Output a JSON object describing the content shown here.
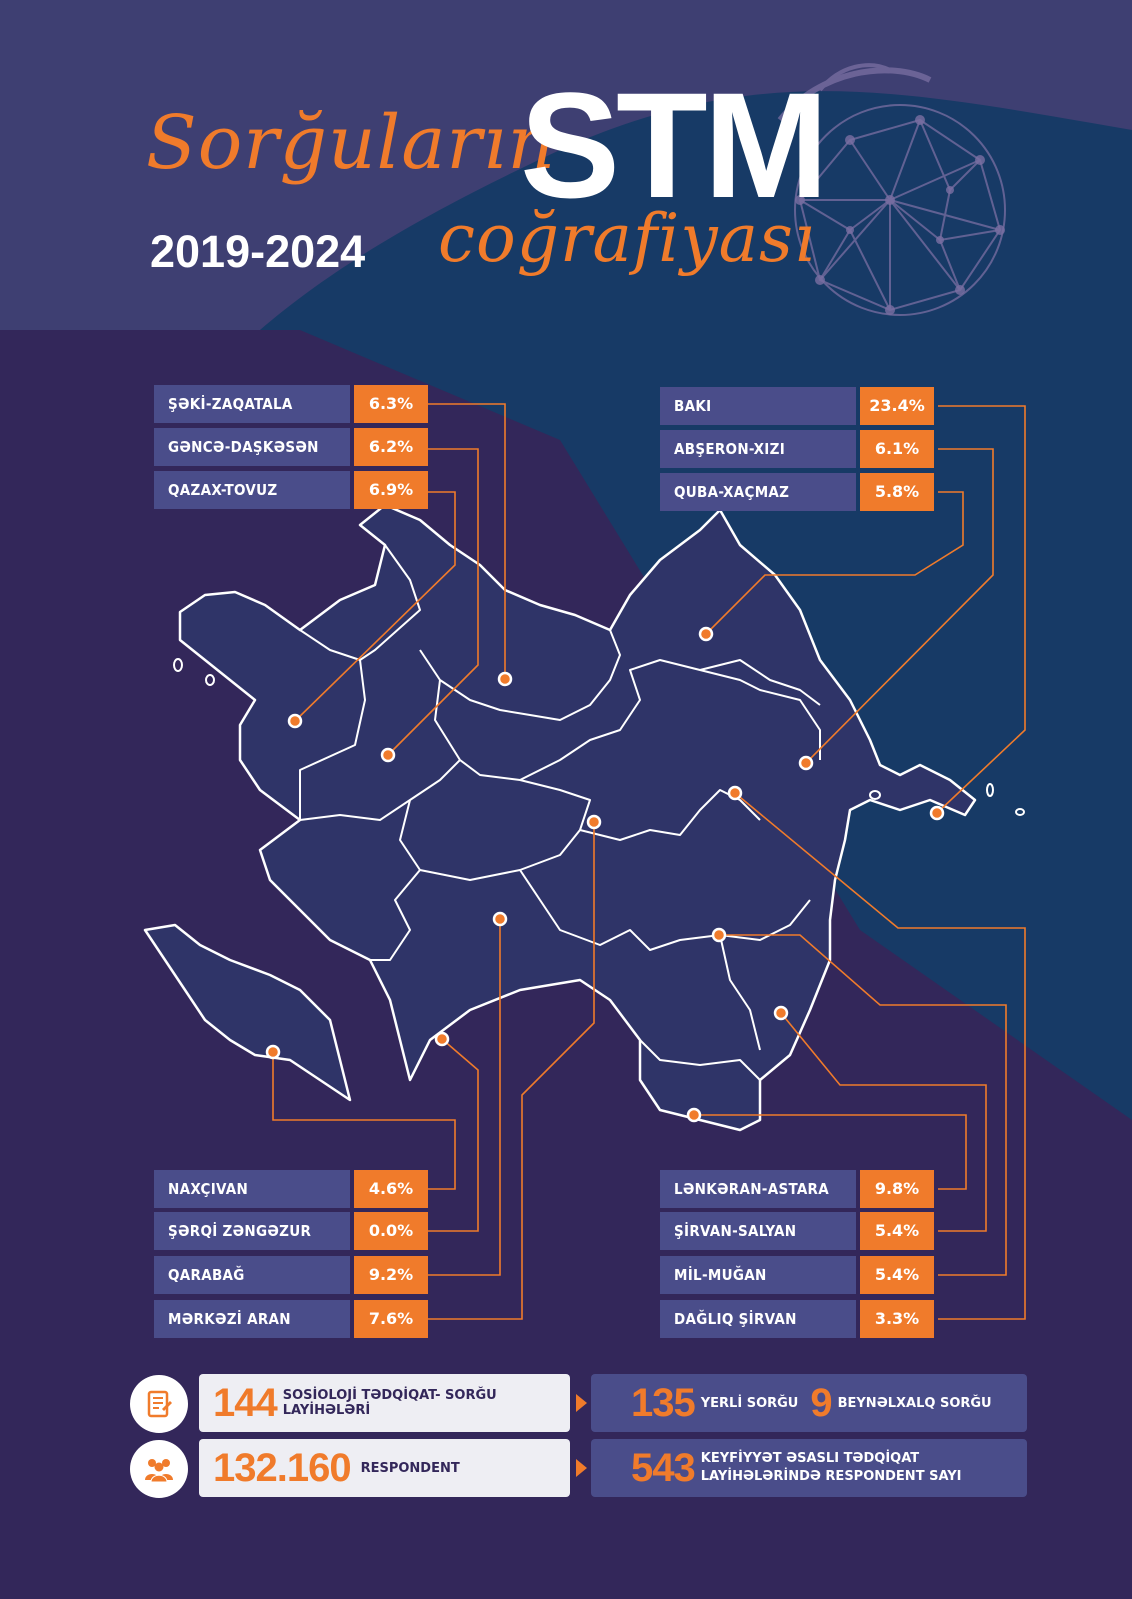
{
  "header": {
    "title_script_1": "Sorğuların",
    "title_brand": "STM",
    "title_script_2": "coğrafiyası",
    "years": "2019-2024"
  },
  "regions_left_top": [
    {
      "name": "ŞƏKİ-ZAQATALA",
      "value": "6.3%"
    },
    {
      "name": "GƏNCƏ-DAŞKƏSƏN",
      "value": "6.2%"
    },
    {
      "name": "QAZAX-TOVUZ",
      "value": "6.9%"
    }
  ],
  "regions_right_top": [
    {
      "name": "BAKI",
      "value": "23.4%"
    },
    {
      "name": "ABŞERON-XIZI",
      "value": "6.1%"
    },
    {
      "name": "QUBA-XAÇMAZ",
      "value": "5.8%"
    }
  ],
  "regions_left_bottom": [
    {
      "name": "NAXÇIVAN",
      "value": "4.6%"
    },
    {
      "name": "ŞƏRQİ ZƏNGƏZUR",
      "value": "0.0%"
    },
    {
      "name": "QARABAĞ",
      "value": "9.2%"
    },
    {
      "name": "MƏRKƏZİ ARAN",
      "value": "7.6%"
    }
  ],
  "regions_right_bottom": [
    {
      "name": "LƏNKƏRAN-ASTARA",
      "value": "9.8%"
    },
    {
      "name": "ŞİRVAN-SALYAN",
      "value": "5.4%"
    },
    {
      "name": "MİL-MUĞAN",
      "value": "5.4%"
    },
    {
      "name": "DAĞLIQ ŞİRVAN",
      "value": "3.3%"
    }
  ],
  "stats": {
    "projects_count": "144",
    "projects_label": "SOSİOLOJİ TƏDQİQAT- SORĞU LAYİHƏLƏRİ",
    "local_count": "135",
    "local_label": "YERLİ SORĞU",
    "intl_count": "9",
    "intl_label": "BEYNƏLXALQ SORĞU",
    "respondents_count": "132.160",
    "respondents_label": "RESPONDENT",
    "qualitative_count": "543",
    "qualitative_label_1": "KEYFİYYƏT ƏSASLI TƏDQİQAT",
    "qualitative_label_2": "LAYİHƏLƏRİNDƏ RESPONDENT SAYI"
  },
  "colors": {
    "accent": "#f07b2b",
    "box": "#4a4d8a",
    "bg_purple": "#33275a",
    "bg_blue": "#173a66",
    "bg_top": "#3e3f72"
  },
  "icons": [
    "document-icon",
    "people-icon",
    "arrow-right-icon"
  ]
}
